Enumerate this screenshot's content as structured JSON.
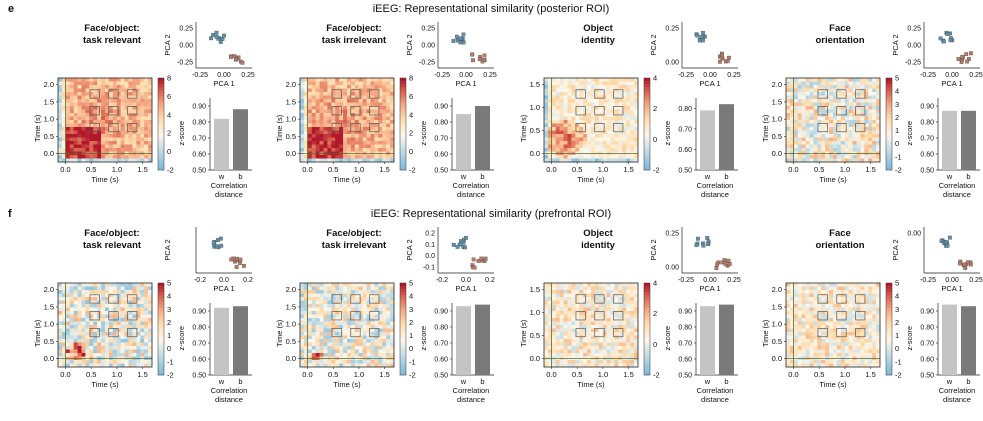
{
  "panels": [
    {
      "letter": "e",
      "title": "iEEG: Representational similarity (posterior ROI)",
      "subplots": [
        {
          "title_lines": [
            "Face/object:",
            "task relevant"
          ],
          "heat_yticks": [
            "2.0",
            "1.5",
            "1.0",
            "0.5",
            "0.0"
          ],
          "heat_xticks": [
            "0.0",
            "0.5",
            "1.0",
            "1.5"
          ],
          "heat_xlabel": "Time (s)",
          "heat_ylabel": "Time (s)",
          "cbar_ticks": [
            "8",
            "6",
            "4",
            "2",
            "0",
            "-2"
          ],
          "cbar_label": "z-score",
          "pca_yticks": [
            "0.25",
            "0.00",
            "-0.25"
          ],
          "pca_xticks": [
            "-0.25",
            "0.00",
            "0.25"
          ],
          "pca_xlabel": "PCA 1",
          "pca_ylabel": "PCA 2",
          "bar_yticks": [
            "0.90",
            "0.80",
            "0.70",
            "0.60",
            "0.50"
          ],
          "bar_cats": [
            "w",
            "b"
          ],
          "bar_values": [
            0.82,
            0.88
          ],
          "bar_ylim": [
            0.5,
            0.95
          ],
          "bar_xlabel": [
            "Correlation",
            "distance"
          ],
          "intensity": "high"
        },
        {
          "title_lines": [
            "Face/object:",
            "task irrelevant"
          ],
          "heat_yticks": [
            "2.0",
            "1.5",
            "1.0",
            "0.5",
            "0.0"
          ],
          "heat_xticks": [
            "0.0",
            "0.5",
            "1.0",
            "1.5"
          ],
          "heat_xlabel": "Time (s)",
          "heat_ylabel": "Time (s)",
          "cbar_ticks": [
            "8",
            "6",
            "4",
            "2",
            "0",
            "-2"
          ],
          "cbar_label": "z-score",
          "pca_yticks": [
            "0.25",
            "0.00",
            "-0.25"
          ],
          "pca_xticks": [
            "-0.25",
            "0.00",
            "0.25"
          ],
          "pca_xlabel": "PCA 1",
          "pca_ylabel": "PCA 2",
          "bar_yticks": [
            "0.90",
            "0.80",
            "0.70",
            "0.60",
            "0.50"
          ],
          "bar_cats": [
            "w",
            "b"
          ],
          "bar_values": [
            0.85,
            0.9
          ],
          "bar_ylim": [
            0.5,
            0.95
          ],
          "bar_xlabel": [
            "Correlation",
            "distance"
          ],
          "intensity": "high"
        },
        {
          "title_lines": [
            "Object",
            "identity"
          ],
          "heat_yticks": [
            "1.5",
            "1.0",
            "0.5",
            "0.0"
          ],
          "heat_xticks": [
            "0.0",
            "0.5",
            "1.0",
            "1.5"
          ],
          "heat_xlabel": "Time (s)",
          "heat_ylabel": "Time (s)",
          "cbar_ticks": [
            "4",
            "2",
            "0",
            "-2"
          ],
          "cbar_label": "z-score",
          "pca_yticks": [
            "0.25",
            "0.00"
          ],
          "pca_xticks": [
            "-0.25",
            "0.00",
            "0.25"
          ],
          "pca_xlabel": "PCA 1",
          "pca_ylabel": "PCA 2",
          "bar_yticks": [
            "0.80",
            "0.70",
            "0.60",
            "0.50"
          ],
          "bar_cats": [
            "w",
            "b"
          ],
          "bar_values": [
            0.79,
            0.82
          ],
          "bar_ylim": [
            0.5,
            0.85
          ],
          "bar_xlabel": [
            "Correlation",
            "distance"
          ],
          "intensity": "mid"
        },
        {
          "title_lines": [
            "Face",
            "orientation"
          ],
          "heat_yticks": [
            "2.0",
            "1.5",
            "1.0",
            "0.5",
            "0.0"
          ],
          "heat_xticks": [
            "0.0",
            "0.5",
            "1.0",
            "1.5"
          ],
          "heat_xlabel": "Time (s)",
          "heat_ylabel": "Time (s)",
          "cbar_ticks": [
            "5",
            "4",
            "3",
            "2",
            "1",
            "0",
            "-1",
            "-2"
          ],
          "cbar_label": "z-score",
          "pca_yticks": [
            "0.25",
            "0.00",
            "-0.25"
          ],
          "pca_xticks": [
            "-0.25",
            "0.00",
            "0.25"
          ],
          "pca_xlabel": "PCA 1",
          "pca_ylabel": "PCA 2",
          "bar_yticks": [
            "0.90",
            "0.80",
            "0.70",
            "0.60",
            "0.50"
          ],
          "bar_cats": [
            "w",
            "b"
          ],
          "bar_values": [
            0.87,
            0.87
          ],
          "bar_ylim": [
            0.5,
            0.95
          ],
          "bar_xlabel": [
            "Correlation",
            "distance"
          ],
          "intensity": "low"
        }
      ]
    },
    {
      "letter": "f",
      "title": "iEEG: Representational similarity (prefrontal ROI)",
      "subplots": [
        {
          "title_lines": [
            "Face/object:",
            "task relevant"
          ],
          "heat_yticks": [
            "2.0",
            "1.5",
            "1.0",
            "0.5",
            "0.0"
          ],
          "heat_xticks": [
            "0.0",
            "0.5",
            "1.0",
            "1.5"
          ],
          "heat_xlabel": "Time (s)",
          "heat_ylabel": "Time (s)",
          "cbar_ticks": [
            "5",
            "4",
            "3",
            "2",
            "1",
            "0",
            "-1",
            "-2"
          ],
          "cbar_label": "z-score",
          "pca_yticks": [],
          "pca_xticks": [
            "-0.2",
            "0.0",
            "0.2"
          ],
          "pca_xlabel": "PCA 1",
          "pca_ylabel": "PCA 2",
          "bar_yticks": [
            "0.90",
            "0.80",
            "0.70",
            "0.60",
            "0.50"
          ],
          "bar_cats": [
            "w",
            "b"
          ],
          "bar_values": [
            0.92,
            0.93
          ],
          "bar_ylim": [
            0.5,
            0.95
          ],
          "bar_xlabel": [
            "Correlation",
            "distance"
          ],
          "intensity": "spot"
        },
        {
          "title_lines": [
            "Face/object:",
            "task irrelevant"
          ],
          "heat_yticks": [
            "2.0",
            "1.5",
            "1.0",
            "0.5",
            "0.0"
          ],
          "heat_xticks": [
            "0.0",
            "0.5",
            "1.0",
            "1.5"
          ],
          "heat_xlabel": "Time (s)",
          "heat_ylabel": "Time (s)",
          "cbar_ticks": [
            "5",
            "4",
            "3",
            "2",
            "1",
            "0",
            "-1",
            "-2"
          ],
          "cbar_label": "z-score",
          "pca_yticks": [
            "0.2",
            "0.1",
            "0.0",
            "-0.1"
          ],
          "pca_xticks": [
            "-0.2",
            "0.0",
            "0.2"
          ],
          "pca_xlabel": "PCA 1",
          "pca_ylabel": "PCA 2",
          "bar_yticks": [
            "0.90",
            "0.80",
            "0.70",
            "0.60",
            "0.50"
          ],
          "bar_cats": [
            "w",
            "b"
          ],
          "bar_values": [
            0.93,
            0.94
          ],
          "bar_ylim": [
            0.5,
            0.95
          ],
          "bar_xlabel": [
            "Correlation",
            "distance"
          ],
          "intensity": "spotsmall"
        },
        {
          "title_lines": [
            "Object",
            "identity"
          ],
          "heat_yticks": [
            "1.5",
            "1.0",
            "0.5",
            "0.0"
          ],
          "heat_xticks": [
            "0.0",
            "0.5",
            "1.0",
            "1.5"
          ],
          "heat_xlabel": "Time (s)",
          "heat_ylabel": "Time (s)",
          "cbar_ticks": [
            "4",
            "2",
            "0",
            "-2"
          ],
          "cbar_label": "z-score",
          "pca_yticks": [
            "0.25",
            "0.00"
          ],
          "pca_xticks": [
            "-0.25",
            "0.00",
            "0.25"
          ],
          "pca_xlabel": "PCA 1",
          "pca_ylabel": "PCA 2",
          "bar_yticks": [
            "0.90",
            "0.80",
            "0.70",
            "0.60",
            "0.50"
          ],
          "bar_cats": [
            "w",
            "b"
          ],
          "bar_values": [
            0.93,
            0.94
          ],
          "bar_ylim": [
            0.5,
            0.95
          ],
          "bar_xlabel": [
            "Correlation",
            "distance"
          ],
          "intensity": "flat"
        },
        {
          "title_lines": [
            "Face",
            "orientation"
          ],
          "heat_yticks": [
            "2.0",
            "1.5",
            "1.0",
            "0.5",
            "0.0"
          ],
          "heat_xticks": [
            "0.0",
            "0.5",
            "1.0",
            "1.5"
          ],
          "heat_xlabel": "Time (s)",
          "heat_ylabel": "Time (s)",
          "cbar_ticks": [
            "5",
            "4",
            "3",
            "2",
            "1",
            "0",
            "-1",
            "-2"
          ],
          "cbar_label": "z-score",
          "pca_yticks": [
            "0.00"
          ],
          "pca_xticks": [
            "-0.25",
            "0.00",
            "0.25"
          ],
          "pca_xlabel": "PCA 1",
          "pca_ylabel": "PCA 2",
          "bar_yticks": [
            "0.90",
            "0.80",
            "0.70",
            "0.60",
            "0.50"
          ],
          "bar_cats": [
            "w",
            "b"
          ],
          "bar_values": [
            0.94,
            0.93
          ],
          "bar_ylim": [
            0.5,
            0.95
          ],
          "bar_xlabel": [
            "Correlation",
            "distance"
          ],
          "intensity": "flat"
        }
      ]
    }
  ],
  "colors": {
    "bar_w": "#c4c4c4",
    "bar_b": "#7a7a7a",
    "hot": "#b2182b",
    "warm": "#f4a582",
    "pale": "#fbe3c8",
    "cool": "#92c5de",
    "cold": "#4393c3"
  }
}
